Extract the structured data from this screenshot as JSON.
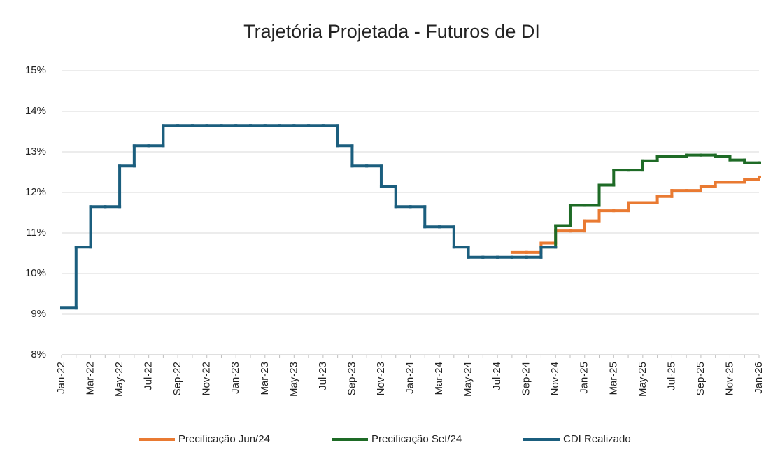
{
  "chart_data": {
    "type": "line",
    "step": true,
    "title": "Trajetória Projetada - Futuros de DI",
    "categories": [
      "Jan-22",
      null,
      "Mar-22",
      null,
      "May-22",
      null,
      "Jul-22",
      null,
      "Sep-22",
      null,
      "Nov-22",
      null,
      "Jan-23",
      null,
      "Mar-23",
      null,
      "May-23",
      null,
      "Jul-23",
      null,
      "Sep-23",
      null,
      "Nov-23",
      null,
      "Jan-24",
      null,
      "Mar-24",
      null,
      "May-24",
      null,
      "Jul-24",
      null,
      "Sep-24",
      null,
      "Nov-24",
      null,
      "Jan-25",
      null,
      "Mar-25",
      null,
      "May-25",
      null,
      "Jul-25",
      null,
      "Sep-25",
      null,
      "Nov-25",
      null,
      "Jan-26"
    ],
    "series": [
      {
        "name": "Precificação Jun/24",
        "color": "#e97a32",
        "values": [
          null,
          null,
          null,
          null,
          null,
          null,
          null,
          null,
          null,
          null,
          null,
          null,
          null,
          null,
          null,
          null,
          null,
          null,
          null,
          null,
          null,
          null,
          null,
          null,
          null,
          null,
          null,
          null,
          null,
          null,
          null,
          10.52,
          10.52,
          10.75,
          11.05,
          11.05,
          11.3,
          11.55,
          11.55,
          11.75,
          11.75,
          11.9,
          12.05,
          12.05,
          12.15,
          12.25,
          12.25,
          12.32,
          12.38
        ]
      },
      {
        "name": "Precificação Set/24",
        "color": "#1e6b26",
        "values": [
          null,
          null,
          null,
          null,
          null,
          null,
          null,
          null,
          null,
          null,
          null,
          null,
          null,
          null,
          null,
          null,
          null,
          null,
          null,
          null,
          null,
          null,
          null,
          null,
          null,
          null,
          null,
          null,
          null,
          null,
          null,
          null,
          null,
          10.65,
          11.18,
          11.68,
          11.68,
          12.18,
          12.55,
          12.55,
          12.78,
          12.88,
          12.88,
          12.92,
          12.92,
          12.88,
          12.8,
          12.73,
          12.73
        ]
      },
      {
        "name": "CDI Realizado",
        "color": "#1b5e7e",
        "values": [
          9.15,
          10.65,
          11.65,
          11.65,
          12.65,
          13.15,
          13.15,
          13.65,
          13.65,
          13.65,
          13.65,
          13.65,
          13.65,
          13.65,
          13.65,
          13.65,
          13.65,
          13.65,
          13.65,
          13.15,
          12.65,
          12.65,
          12.15,
          11.65,
          11.65,
          11.15,
          11.15,
          10.65,
          10.4,
          10.4,
          10.4,
          10.4,
          10.4,
          10.65,
          null,
          null,
          null,
          null,
          null,
          null,
          null,
          null,
          null,
          null,
          null,
          null,
          null,
          null,
          null
        ]
      }
    ],
    "ylim": [
      8,
      15
    ],
    "yticks": [
      {
        "value": 8,
        "label": "8%"
      },
      {
        "value": 9,
        "label": "9%"
      },
      {
        "value": 10,
        "label": "10%"
      },
      {
        "value": 11,
        "label": "11%"
      },
      {
        "value": 12,
        "label": "12%"
      },
      {
        "value": 13,
        "label": "13%"
      },
      {
        "value": 14,
        "label": "14%"
      },
      {
        "value": 15,
        "label": "15%"
      }
    ],
    "grid": true,
    "legend": "bottom"
  }
}
